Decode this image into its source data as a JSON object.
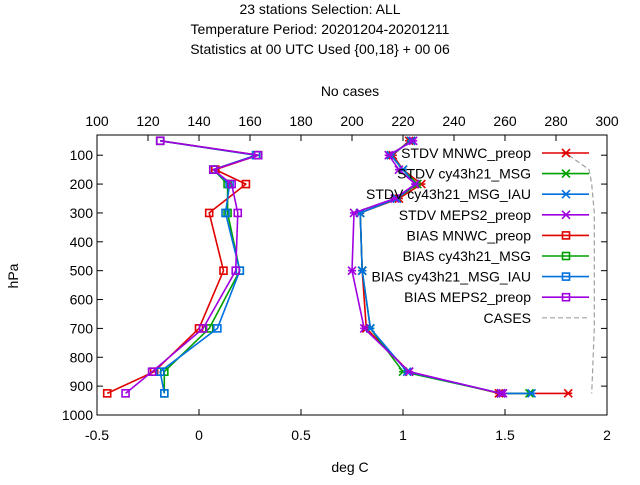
{
  "chart_data": {
    "type": "line",
    "title_lines": [
      "23 stations Selection: ALL",
      "Temperature  Period: 20201204-20201211",
      "Statistics at 00 UTC  Used {00,18} + 00 06"
    ],
    "xlabel": "deg C",
    "ylabel": "hPa",
    "x2label": "No cases",
    "xlim": [
      -0.5,
      2
    ],
    "ylim": [
      1000,
      30
    ],
    "x2lim": [
      100,
      300
    ],
    "xticks": [
      "-0.5",
      "0",
      "0.5",
      "1",
      "1.5",
      "2"
    ],
    "x2ticks": [
      "100",
      "120",
      "140",
      "160",
      "180",
      "200",
      "220",
      "240",
      "260",
      "280",
      "300"
    ],
    "yticks": [
      "100",
      "200",
      "300",
      "400",
      "500",
      "600",
      "700",
      "800",
      "900",
      "1000"
    ],
    "legend_position": "top-right",
    "grid": false,
    "series": [
      {
        "name": "STDV MNWC_preop",
        "color": "#e00000",
        "marker": "x",
        "x": [
          1.03,
          0.95,
          1.0,
          1.09,
          0.98,
          0.79,
          0.8,
          0.82,
          1.03,
          1.47,
          1.81
        ],
        "y": [
          50,
          100,
          150,
          200,
          250,
          300,
          500,
          700,
          850,
          925,
          925
        ]
      },
      {
        "name": "STDV cy43h21_MSG",
        "color": "#00a000",
        "marker": "x",
        "x": [
          1.04,
          0.94,
          1.0,
          1.07,
          0.97,
          0.79,
          0.8,
          0.84,
          1.0,
          1.48,
          1.62
        ],
        "y": [
          50,
          100,
          150,
          200,
          250,
          300,
          500,
          700,
          850,
          925,
          925
        ]
      },
      {
        "name": "STDV cy43h21_MSG_IAU",
        "color": "#0070e0",
        "marker": "x",
        "x": [
          1.04,
          0.94,
          1.0,
          1.06,
          0.97,
          0.79,
          0.8,
          0.84,
          1.02,
          1.48,
          1.63
        ],
        "y": [
          50,
          100,
          150,
          200,
          250,
          300,
          500,
          700,
          850,
          925,
          925
        ]
      },
      {
        "name": "STDV MEPS2_preop",
        "color": "#a000e0",
        "marker": "x",
        "x": [
          1.05,
          0.93,
          0.98,
          1.06,
          0.96,
          0.76,
          0.75,
          0.81,
          1.03,
          1.48,
          1.49
        ],
        "y": [
          50,
          100,
          150,
          200,
          250,
          300,
          500,
          700,
          850,
          925,
          925
        ]
      },
      {
        "name": "BIAS MNWC_preop",
        "color": "#e00000",
        "marker": "square",
        "x": [
          -0.19,
          0.29,
          0.08,
          0.23,
          0.05,
          0.12,
          0.0,
          -0.22,
          -0.45
        ],
        "y": [
          50,
          100,
          150,
          200,
          300,
          500,
          700,
          850,
          925
        ]
      },
      {
        "name": "BIAS cy43h21_MSG",
        "color": "#00a000",
        "marker": "square",
        "x": [
          -0.19,
          0.28,
          0.07,
          0.14,
          0.14,
          0.2,
          0.05,
          -0.17,
          -0.17
        ],
        "y": [
          50,
          100,
          150,
          200,
          300,
          500,
          700,
          850,
          925
        ]
      },
      {
        "name": "BIAS cy43h21_MSG_IAU",
        "color": "#0070e0",
        "marker": "square",
        "x": [
          -0.19,
          0.28,
          0.07,
          0.15,
          0.13,
          0.2,
          0.09,
          -0.19,
          -0.17
        ],
        "y": [
          50,
          100,
          150,
          200,
          300,
          500,
          700,
          850,
          925
        ]
      },
      {
        "name": "BIAS MEPS2_preop",
        "color": "#a000e0",
        "marker": "square",
        "x": [
          -0.19,
          0.29,
          0.07,
          0.16,
          0.19,
          0.18,
          0.02,
          -0.23,
          -0.36
        ],
        "y": [
          50,
          100,
          150,
          200,
          300,
          500,
          700,
          850,
          925
        ]
      },
      {
        "name": "CASES",
        "color": "#a0a0a0",
        "marker": "none",
        "dashed": true,
        "axis": "x2",
        "x": [
          285,
          293,
          294,
          295,
          295,
          295,
          294
        ],
        "y": [
          100,
          150,
          200,
          300,
          500,
          700,
          925
        ]
      }
    ]
  }
}
